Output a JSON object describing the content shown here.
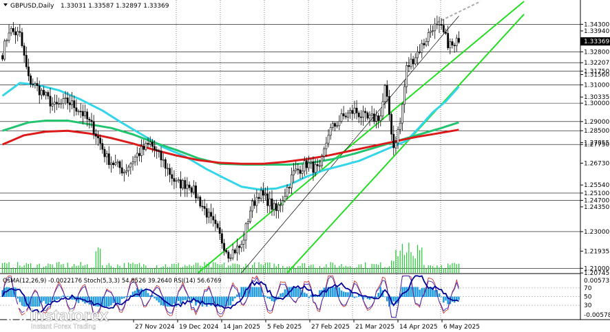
{
  "header": {
    "symbol": "GBPUSD,Daily",
    "ohlc": "1.33031 1.33587 1.32897 1.33369"
  },
  "chart_data": {
    "type": "candlestick",
    "price_ylim": [
      1.2075,
      1.3555
    ],
    "price_ticks": [
      "1.34300",
      "1.33940",
      "1.33369",
      "1.32800",
      "1.32207",
      "1.31750",
      "1.31560",
      "1.31000",
      "1.30335",
      "1.30000",
      "1.29000",
      "1.28500",
      "1.27855",
      "1.27750",
      "1.26730",
      "1.25540",
      "1.25100",
      "1.24700",
      "1.24350",
      "1.23000",
      "1.21935",
      "1.21000",
      "1.20745"
    ],
    "hline_levels": [
      1.343,
      1.328,
      1.32207,
      1.3175,
      1.31,
      1.3,
      1.29,
      1.285,
      1.2775,
      1.251,
      1.247,
      1.23,
      1.21
    ],
    "current_price": 1.33369,
    "x_ticks": [
      "27 Nov 2024",
      "19 Dec 2024",
      "14 Jan 2025",
      "5 Feb 2025",
      "27 Feb 2025",
      "21 Mar 2025",
      "14 Apr 2025",
      "6 May 2025"
    ],
    "vertical_gridlines_after_ticks": [
      1,
      2,
      3,
      4,
      5,
      6,
      7
    ],
    "moving_averages": [
      {
        "color": "#33d6e8",
        "note": "fast MA",
        "points": [
          [
            0,
            1.304
          ],
          [
            8,
            1.311
          ],
          [
            16,
            1.31
          ],
          [
            26,
            1.307
          ],
          [
            36,
            1.302
          ],
          [
            46,
            1.296
          ],
          [
            54,
            1.29
          ],
          [
            64,
            1.283
          ],
          [
            74,
            1.276
          ],
          [
            84,
            1.271
          ],
          [
            94,
            1.264
          ],
          [
            104,
            1.258
          ],
          [
            110,
            1.2545
          ],
          [
            118,
            1.253
          ],
          [
            126,
            1.2535
          ],
          [
            132,
            1.2555
          ],
          [
            140,
            1.26
          ],
          [
            148,
            1.2635
          ],
          [
            156,
            1.266
          ],
          [
            164,
            1.2685
          ],
          [
            172,
            1.2725
          ],
          [
            180,
            1.2765
          ],
          [
            186,
            1.2795
          ],
          [
            192,
            1.287
          ],
          [
            198,
            1.295
          ],
          [
            204,
            1.301
          ],
          [
            210,
            1.309
          ]
        ]
      },
      {
        "color": "#22c470",
        "note": "mid MA",
        "points": [
          [
            0,
            1.285
          ],
          [
            12,
            1.2895
          ],
          [
            20,
            1.2905
          ],
          [
            30,
            1.2905
          ],
          [
            40,
            1.2885
          ],
          [
            50,
            1.2865
          ],
          [
            60,
            1.283
          ],
          [
            70,
            1.2785
          ],
          [
            80,
            1.2745
          ],
          [
            90,
            1.27
          ],
          [
            100,
            1.267
          ],
          [
            112,
            1.2665
          ],
          [
            122,
            1.2665
          ],
          [
            132,
            1.2665
          ],
          [
            142,
            1.2675
          ],
          [
            152,
            1.2695
          ],
          [
            162,
            1.2725
          ],
          [
            172,
            1.276
          ],
          [
            182,
            1.2795
          ],
          [
            192,
            1.283
          ],
          [
            202,
            1.2865
          ],
          [
            210,
            1.2895
          ]
        ]
      },
      {
        "color": "#dc1a1a",
        "note": "slow MA",
        "points": [
          [
            0,
            1.2775
          ],
          [
            10,
            1.2825
          ],
          [
            20,
            1.2845
          ],
          [
            30,
            1.285
          ],
          [
            40,
            1.2835
          ],
          [
            50,
            1.281
          ],
          [
            60,
            1.278
          ],
          [
            70,
            1.2745
          ],
          [
            80,
            1.2715
          ],
          [
            90,
            1.269
          ],
          [
            100,
            1.2675
          ],
          [
            110,
            1.267
          ],
          [
            120,
            1.267
          ],
          [
            130,
            1.268
          ],
          [
            140,
            1.2695
          ],
          [
            150,
            1.2715
          ],
          [
            160,
            1.274
          ],
          [
            170,
            1.2765
          ],
          [
            180,
            1.279
          ],
          [
            190,
            1.2815
          ],
          [
            200,
            1.2835
          ],
          [
            210,
            1.2855
          ]
        ]
      }
    ],
    "trendlines": [
      {
        "color": "#22dd22",
        "points": [
          [
            90,
            1.2075
          ],
          [
            240,
            1.3555
          ]
        ]
      },
      {
        "color": "#22dd22",
        "points": [
          [
            131,
            1.2075
          ],
          [
            240,
            1.3485
          ]
        ]
      },
      {
        "color": "#000000",
        "points": [
          [
            110,
            1.2075
          ],
          [
            210,
            1.3475
          ]
        ]
      },
      {
        "color": "#aaaaaa",
        "dashed": true,
        "points": [
          [
            200,
            1.344
          ],
          [
            220,
            1.3555
          ]
        ]
      }
    ],
    "ohlc_anchors": [
      [
        0,
        1.327
      ],
      [
        3,
        1.34
      ],
      [
        8,
        1.337
      ],
      [
        12,
        1.313
      ],
      [
        18,
        1.306
      ],
      [
        24,
        1.298
      ],
      [
        30,
        1.301
      ],
      [
        36,
        1.296
      ],
      [
        42,
        1.286
      ],
      [
        48,
        1.27
      ],
      [
        56,
        1.263
      ],
      [
        62,
        1.272
      ],
      [
        68,
        1.278
      ],
      [
        74,
        1.268
      ],
      [
        80,
        1.256
      ],
      [
        86,
        1.256
      ],
      [
        92,
        1.244
      ],
      [
        98,
        1.232
      ],
      [
        104,
        1.218
      ],
      [
        110,
        1.222
      ],
      [
        114,
        1.242
      ],
      [
        118,
        1.251
      ],
      [
        122,
        1.247
      ],
      [
        126,
        1.241
      ],
      [
        130,
        1.251
      ],
      [
        134,
        1.262
      ],
      [
        140,
        1.267
      ],
      [
        146,
        1.263
      ],
      [
        150,
        1.284
      ],
      [
        156,
        1.292
      ],
      [
        162,
        1.296
      ],
      [
        168,
        1.291
      ],
      [
        174,
        1.293
      ],
      [
        176,
        1.308
      ],
      [
        178,
        1.294
      ],
      [
        180,
        1.276
      ],
      [
        183,
        1.289
      ],
      [
        186,
        1.319
      ],
      [
        190,
        1.326
      ],
      [
        194,
        1.333
      ],
      [
        198,
        1.342
      ],
      [
        202,
        1.34
      ],
      [
        205,
        1.333
      ],
      [
        208,
        1.33
      ],
      [
        210,
        1.336
      ]
    ],
    "n_bars": 211,
    "volume_spikes_at": [
      [
        44,
        "tall"
      ],
      [
        184,
        "tall"
      ],
      [
        186,
        "tall"
      ],
      [
        192,
        "tall"
      ]
    ],
    "oscillator_panel": {
      "header": "OsMA(12,26,9) -0.0022176  Stoch(5,3,3) 54.8526 39.2640  RSI(14) 56.6769",
      "labels": [
        "0.005737",
        "70",
        "50",
        "30",
        "-0.005780"
      ],
      "osma_color": "#1e9be0",
      "stoch_main_color": "#1a1acc",
      "stoch_signal_color": "#d01a1a",
      "rsi_color": "#000099"
    },
    "watermark": {
      "brand": "instaforex",
      "tagline": "Instant Forex Trading"
    },
    "colors": {
      "price_box_bg": "#000000",
      "price_box_fg": "#ffffff",
      "candle": "#000000",
      "volume_bar": "#22cc33"
    }
  }
}
